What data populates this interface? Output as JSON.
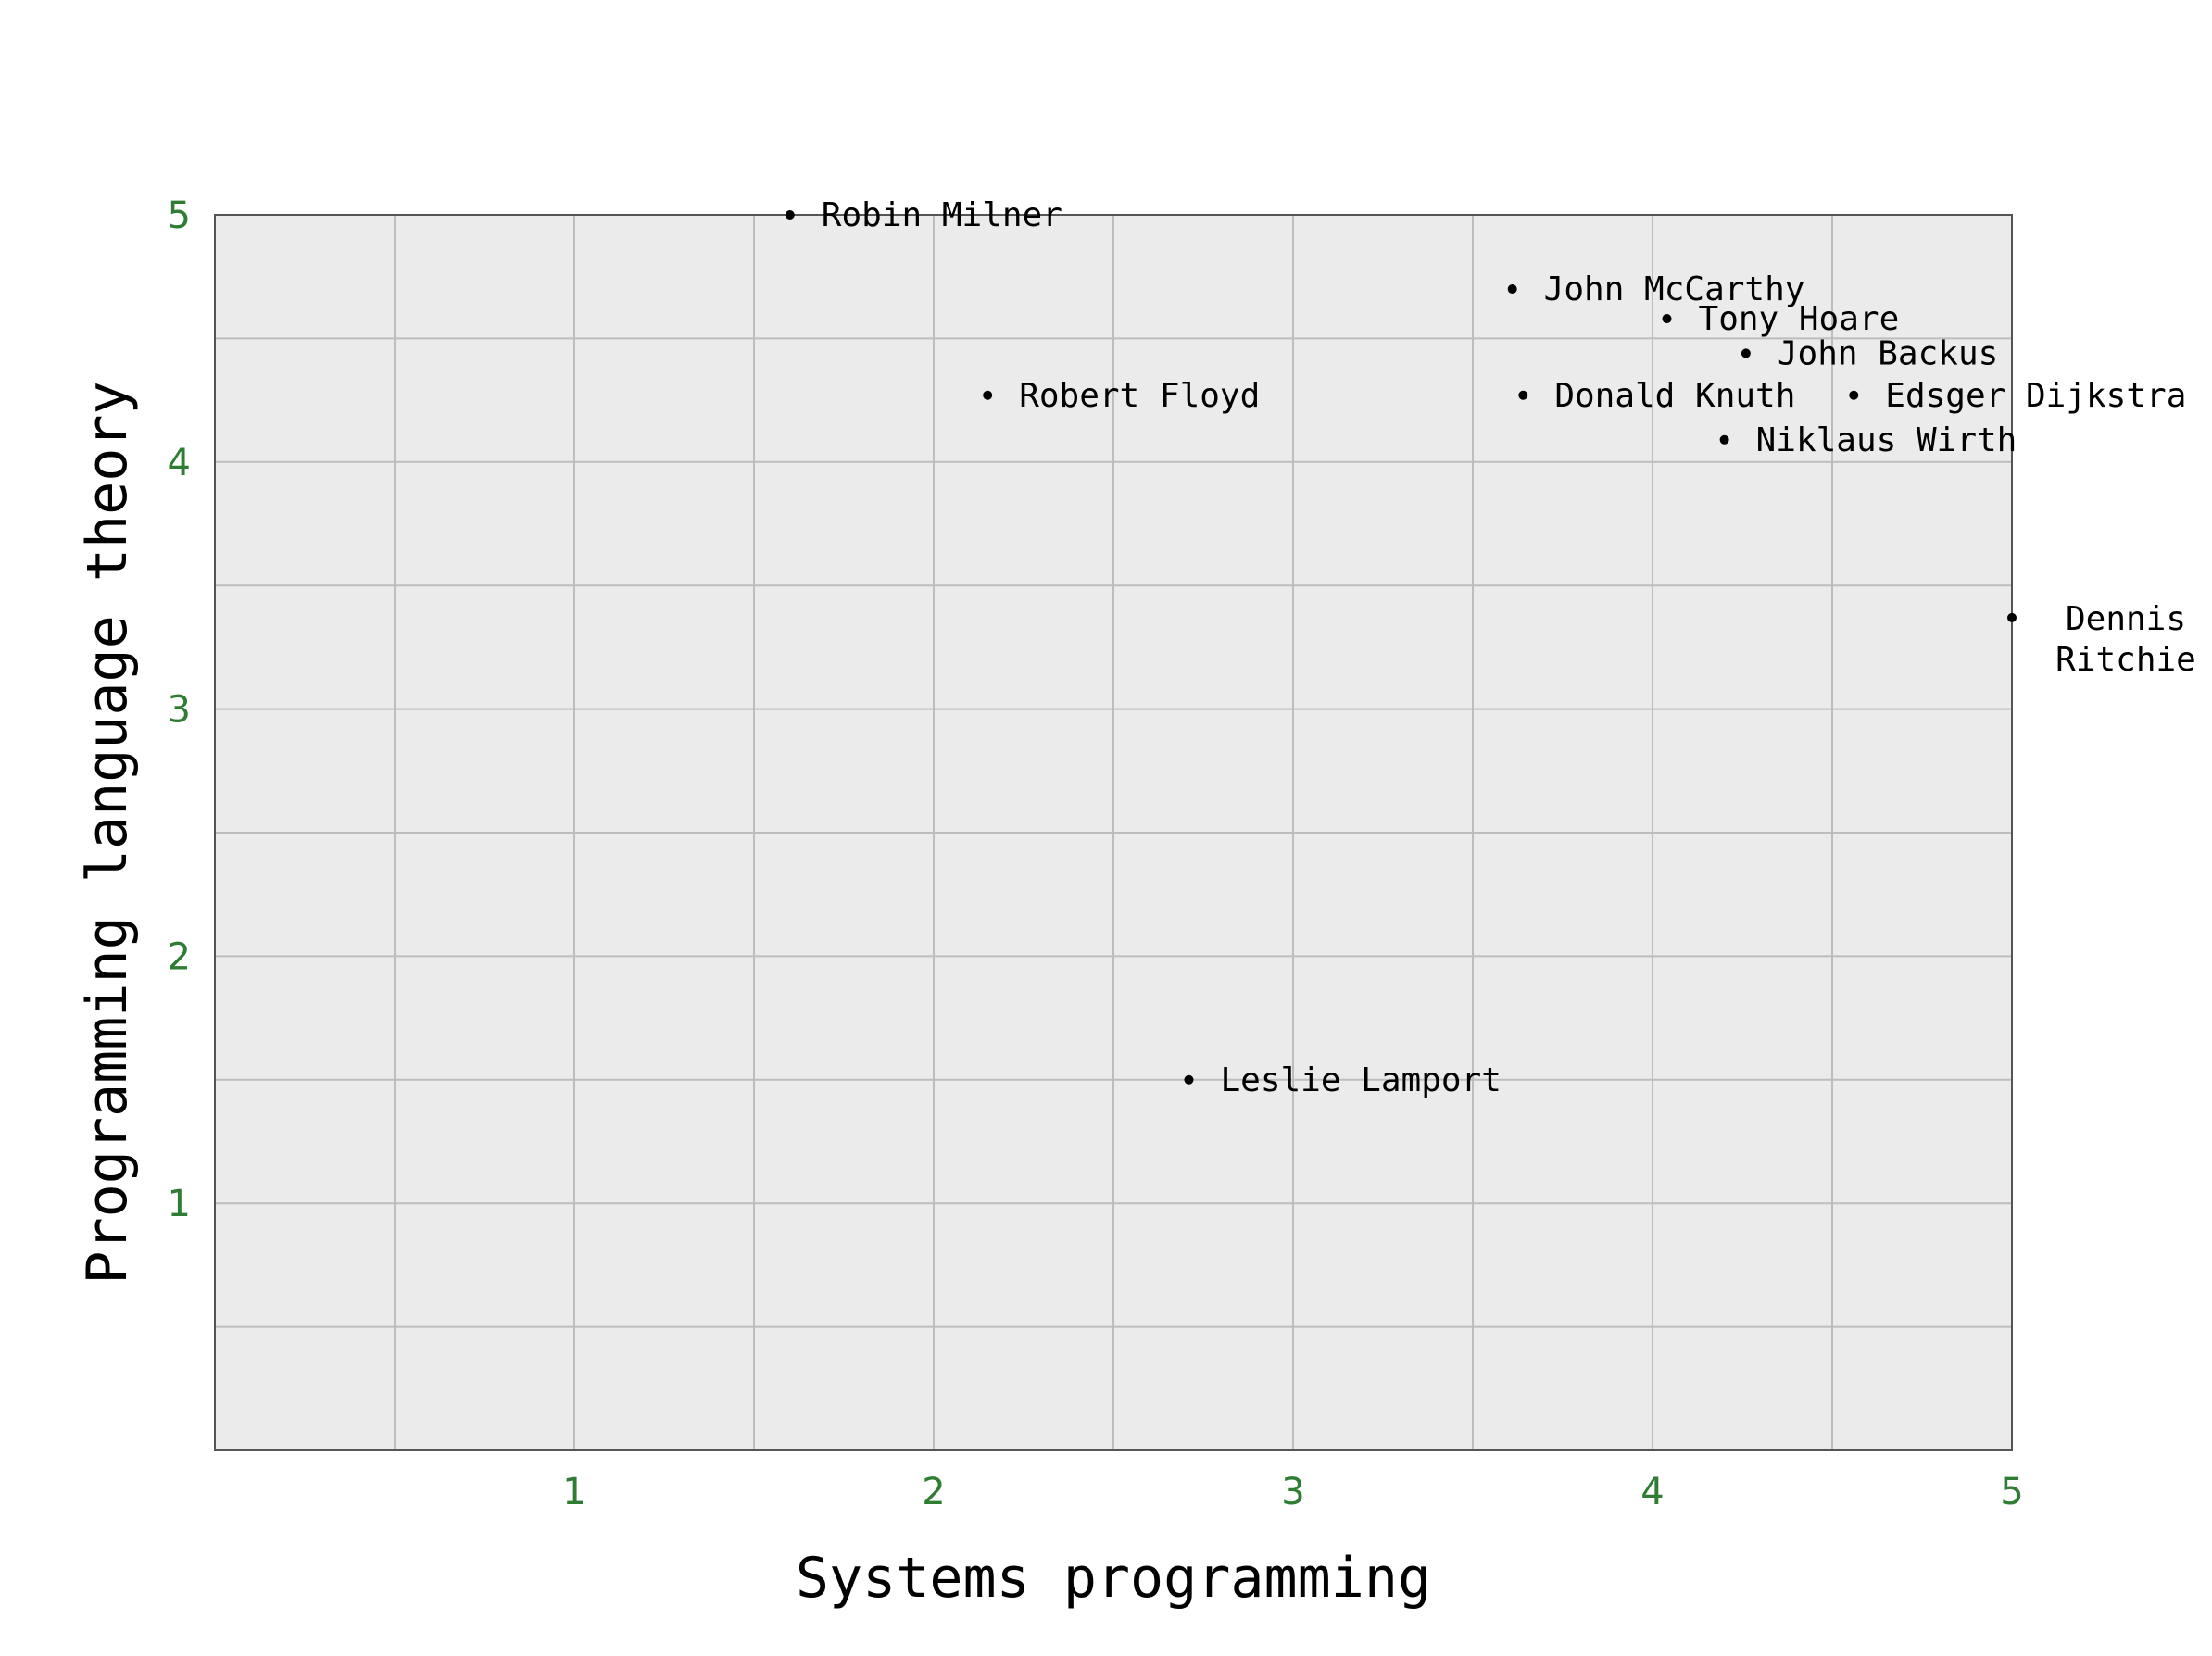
{
  "colors": {
    "background": "#ffffff",
    "plot_background": "#ebebeb",
    "grid": "#bdbdbd",
    "frame": "#555555",
    "tick_label": "#2e7d32",
    "point": "#000000"
  },
  "chart_data": {
    "type": "scatter",
    "title": "",
    "xlabel": "Systems programming",
    "ylabel": "Programming language theory",
    "xlim": [
      0,
      5
    ],
    "ylim": [
      0,
      5
    ],
    "xticks": [
      1,
      2,
      3,
      4,
      5
    ],
    "yticks": [
      1,
      2,
      3,
      4,
      5
    ],
    "grid": true,
    "grid_step": 0.5,
    "points": [
      {
        "label": "Robin Milner",
        "x": 1.6,
        "y": 5.0
      },
      {
        "label": "John McCarthy",
        "x": 3.61,
        "y": 4.7
      },
      {
        "label": "Tony Hoare",
        "x": 4.04,
        "y": 4.58
      },
      {
        "label": "John Backus",
        "x": 4.26,
        "y": 4.44
      },
      {
        "label": "Robert Floyd",
        "x": 2.15,
        "y": 4.27
      },
      {
        "label": "Donald Knuth",
        "x": 3.64,
        "y": 4.27
      },
      {
        "label": "Edsger Dijkstra",
        "x": 4.56,
        "y": 4.27
      },
      {
        "label": "Niklaus Wirth",
        "x": 4.2,
        "y": 4.09
      },
      {
        "label": "Dennis Ritchie",
        "x": 5.0,
        "y": 3.37
      },
      {
        "label": "Leslie Lamport",
        "x": 2.71,
        "y": 1.5
      }
    ]
  }
}
